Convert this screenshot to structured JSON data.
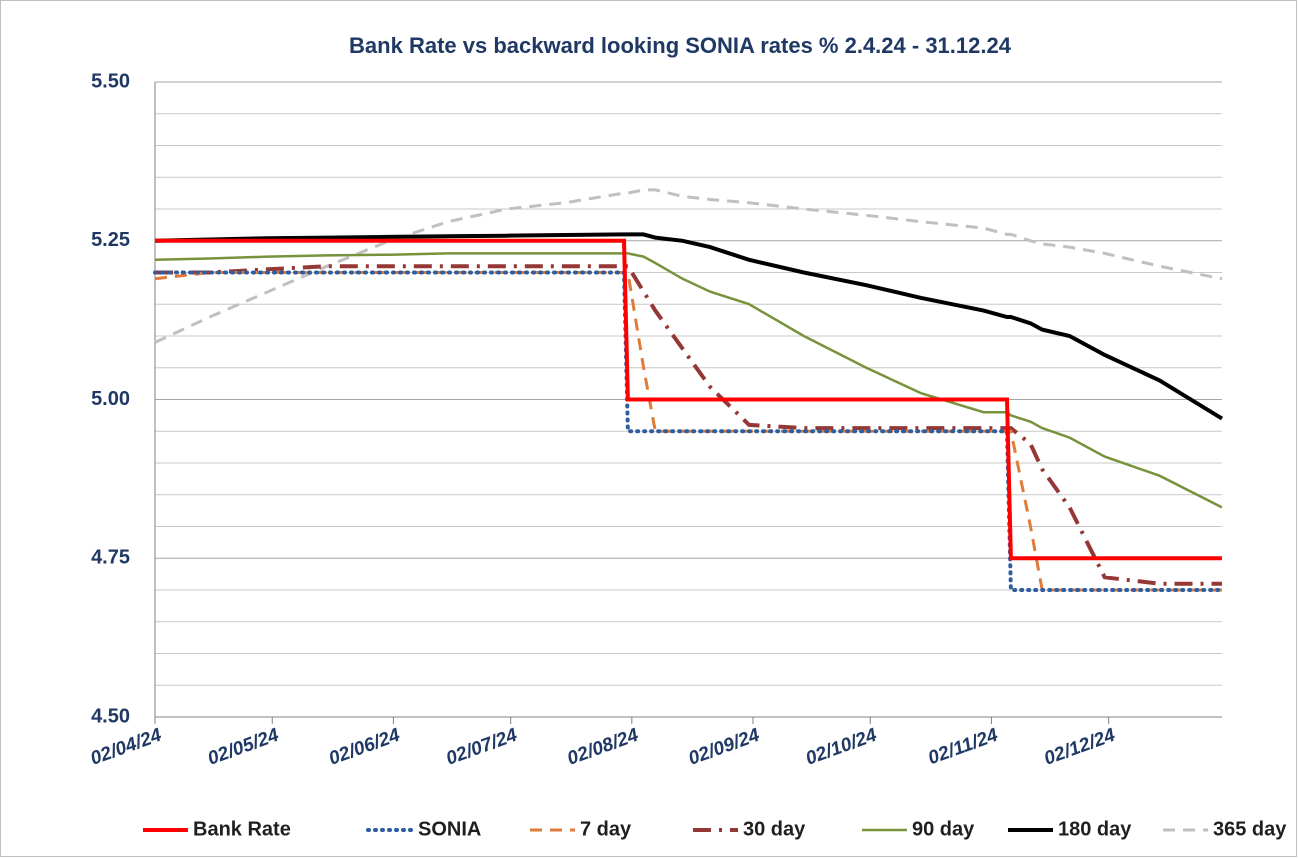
{
  "chart_data": {
    "type": "line",
    "title": "Bank Rate vs backward looking SONIA rates % 2.4.24 - 31.12.24",
    "x": [
      "02/04/24",
      "16/04/24",
      "01/05/24",
      "16/05/24",
      "01/06/24",
      "16/06/24",
      "01/07/24",
      "16/07/24",
      "31/07/24",
      "01/08/24",
      "05/08/24",
      "08/08/24",
      "15/08/24",
      "22/08/24",
      "01/09/24",
      "15/09/24",
      "01/10/24",
      "15/10/24",
      "31/10/24",
      "06/11/24",
      "07/11/24",
      "12/11/24",
      "15/11/24",
      "22/11/24",
      "01/12/24",
      "15/12/24",
      "31/12/24"
    ],
    "xlim": [
      "02/04/24",
      "31/12/24"
    ],
    "xticks": [
      "02/04/24",
      "02/05/24",
      "02/06/24",
      "02/07/24",
      "02/08/24",
      "02/09/24",
      "02/10/24",
      "02/11/24",
      "02/12/24"
    ],
    "ylim": [
      4.5,
      5.5
    ],
    "yticks": [
      {
        "value": 4.5,
        "label": "4.50"
      },
      {
        "value": 4.75,
        "label": "4.75"
      },
      {
        "value": 5,
        "label": "5.00"
      },
      {
        "value": 5.25,
        "label": "5.25"
      },
      {
        "value": 5.5,
        "label": "5.50"
      }
    ],
    "y_minor_ticks": [
      4.55,
      4.6,
      4.65,
      4.7,
      4.8,
      4.85,
      4.9,
      4.95,
      5.05,
      5.1,
      5.15,
      5.2,
      5.3,
      5.35,
      5.4,
      5.45
    ],
    "grid": true,
    "legend": "bottom",
    "series": [
      {
        "name": "Bank Rate",
        "color": "#ff0000",
        "width": 4,
        "style": "solid",
        "values": [
          5.25,
          5.25,
          5.25,
          5.25,
          5.25,
          5.25,
          5.25,
          5.25,
          5.25,
          5,
          5,
          5,
          5,
          5,
          5,
          5,
          5,
          5,
          5,
          5,
          4.75,
          4.75,
          4.75,
          4.75,
          4.75,
          4.75,
          4.75
        ]
      },
      {
        "name": "SONIA",
        "color": "#2e5e9e",
        "width": 4,
        "style": "dot",
        "values": [
          5.2,
          5.2,
          5.2,
          5.2,
          5.2,
          5.2,
          5.2,
          5.2,
          5.2,
          4.95,
          4.95,
          4.95,
          4.95,
          4.95,
          4.95,
          4.95,
          4.95,
          4.95,
          4.95,
          4.95,
          4.7,
          4.7,
          4.7,
          4.7,
          4.7,
          4.7,
          4.7
        ]
      },
      {
        "name": "7 day",
        "color": "#e07b39",
        "width": 3,
        "style": "dash",
        "values": [
          5.19,
          5.2,
          5.2,
          5.2,
          5.2,
          5.2,
          5.2,
          5.2,
          5.2,
          5.2,
          5.05,
          4.95,
          4.95,
          4.95,
          4.95,
          4.95,
          4.95,
          4.95,
          4.95,
          4.95,
          4.95,
          4.8,
          4.7,
          4.7,
          4.7,
          4.7,
          4.7
        ]
      },
      {
        "name": "30 day",
        "color": "#953735",
        "width": 4,
        "style": "dashdot",
        "values": [
          5.2,
          5.2,
          5.205,
          5.21,
          5.21,
          5.21,
          5.21,
          5.21,
          5.21,
          5.21,
          5.17,
          5.14,
          5.08,
          5.02,
          4.96,
          4.955,
          4.955,
          4.955,
          4.955,
          4.955,
          4.955,
          4.93,
          4.89,
          4.83,
          4.72,
          4.71,
          4.71
        ]
      },
      {
        "name": "90 day",
        "color": "#77933c",
        "width": 2.5,
        "style": "solid",
        "values": [
          5.22,
          5.222,
          5.225,
          5.227,
          5.228,
          5.23,
          5.23,
          5.23,
          5.23,
          5.23,
          5.225,
          5.215,
          5.19,
          5.17,
          5.15,
          5.1,
          5.05,
          5.01,
          4.98,
          4.98,
          4.975,
          4.965,
          4.955,
          4.94,
          4.91,
          4.88,
          4.83
        ]
      },
      {
        "name": "180 day",
        "color": "#000000",
        "width": 4,
        "style": "solid",
        "values": [
          5.25,
          5.252,
          5.254,
          5.255,
          5.256,
          5.257,
          5.258,
          5.259,
          5.26,
          5.26,
          5.26,
          5.255,
          5.25,
          5.24,
          5.22,
          5.2,
          5.18,
          5.16,
          5.14,
          5.13,
          5.13,
          5.12,
          5.11,
          5.1,
          5.07,
          5.03,
          4.97
        ]
      },
      {
        "name": "365 day",
        "color": "#c0c0c0",
        "width": 3,
        "style": "dash",
        "values": [
          5.09,
          5.13,
          5.17,
          5.21,
          5.25,
          5.28,
          5.3,
          5.31,
          5.325,
          5.325,
          5.33,
          5.33,
          5.32,
          5.315,
          5.31,
          5.3,
          5.29,
          5.28,
          5.27,
          5.26,
          5.26,
          5.25,
          5.245,
          5.24,
          5.23,
          5.21,
          5.19
        ]
      }
    ]
  }
}
